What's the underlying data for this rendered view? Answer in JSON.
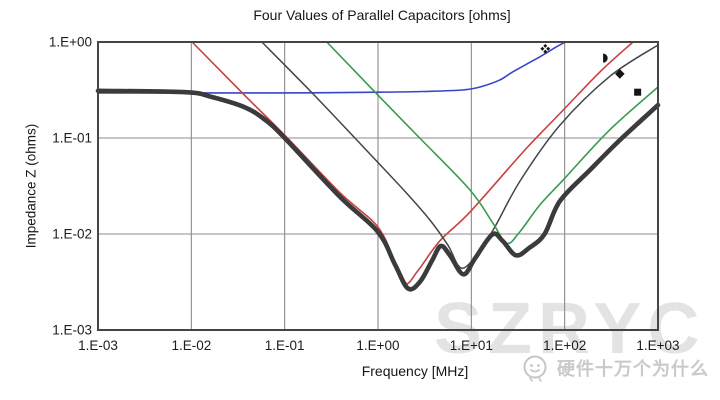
{
  "page": {
    "background": "#ffffff"
  },
  "chart": {
    "title": "Four Values of Parallel Capacitors [ohms]",
    "x_axis_title": "Frequency [MHz]",
    "y_axis_title": "Impedance Z (ohms)"
  },
  "watermark": {
    "text": "SZRYC",
    "color": "#e3e3e3"
  },
  "brand": {
    "name": "硬件十万个为什么",
    "logo": "cartoon-face-icon",
    "color": "#c9c9c9"
  },
  "chart_data": {
    "type": "line",
    "title": "Four Values of Parallel Capacitors [ohms]",
    "xlabel": "Frequency [MHz]",
    "ylabel": "Impedance Z (ohms)",
    "x_scale": "log",
    "y_scale": "log",
    "xlim": [
      0.001,
      1000
    ],
    "ylim": [
      0.001,
      1
    ],
    "grid": true,
    "grid_color": "#8b8b8b",
    "border_color": "#454545",
    "x_ticks": [
      {
        "value": 0.001,
        "label": "1.E-03"
      },
      {
        "value": 0.01,
        "label": "1.E-02"
      },
      {
        "value": 0.1,
        "label": "1.E-01"
      },
      {
        "value": 1,
        "label": "1.E+00"
      },
      {
        "value": 10,
        "label": "1.E+01"
      },
      {
        "value": 100,
        "label": "1.E+02"
      },
      {
        "value": 1000,
        "label": "1.E+03"
      }
    ],
    "y_ticks": [
      {
        "value": 1,
        "label": "1.E+00"
      },
      {
        "value": 0.1,
        "label": "1.E-01"
      },
      {
        "value": 0.01,
        "label": "1.E-02"
      },
      {
        "value": 0.001,
        "label": "1.E-03"
      }
    ],
    "series": [
      {
        "name": "blue-capacitor",
        "color": "#3646c8",
        "width": 1.6,
        "points": [
          [
            0.001,
            0.295
          ],
          [
            0.01,
            0.295
          ],
          [
            0.05,
            0.295
          ],
          [
            0.2,
            0.296
          ],
          [
            1,
            0.3
          ],
          [
            3,
            0.305
          ],
          [
            8,
            0.316
          ],
          [
            12.4,
            0.34
          ],
          [
            20,
            0.4
          ],
          [
            28,
            0.49
          ],
          [
            54,
            0.7
          ],
          [
            80,
            0.88
          ],
          [
            102,
            1.0
          ]
        ]
      },
      {
        "name": "red-capacitor",
        "color": "#c84040",
        "width": 1.6,
        "points": [
          [
            0.0102,
            1.0
          ],
          [
            0.037,
            0.28
          ],
          [
            0.1,
            0.107
          ],
          [
            0.39,
            0.027
          ],
          [
            1.0,
            0.0118
          ],
          [
            1.52,
            0.005
          ],
          [
            1.95,
            0.003
          ],
          [
            2.7,
            0.0042
          ],
          [
            4.6,
            0.0085
          ],
          [
            9.7,
            0.017
          ],
          [
            37.5,
            0.075
          ],
          [
            89,
            0.18
          ],
          [
            240,
            0.49
          ],
          [
            540,
            1.0
          ]
        ]
      },
      {
        "name": "black-capacitor",
        "color": "#454545",
        "width": 1.5,
        "points": [
          [
            0.057,
            1.0
          ],
          [
            0.2,
            0.29
          ],
          [
            0.565,
            0.1
          ],
          [
            2.0,
            0.027
          ],
          [
            3.6,
            0.014
          ],
          [
            5.6,
            0.0077
          ],
          [
            7.9,
            0.0044
          ],
          [
            12.4,
            0.0068
          ],
          [
            18,
            0.012
          ],
          [
            33.5,
            0.036
          ],
          [
            89,
            0.136
          ],
          [
            306,
            0.44
          ],
          [
            1000,
            0.93
          ]
        ]
      },
      {
        "name": "green-capacitor",
        "color": "#3a9a50",
        "width": 1.6,
        "points": [
          [
            0.283,
            1.0
          ],
          [
            0.93,
            0.3
          ],
          [
            2.8,
            0.1
          ],
          [
            9.6,
            0.029
          ],
          [
            17,
            0.013
          ],
          [
            24,
            0.008
          ],
          [
            33,
            0.0105
          ],
          [
            54,
            0.02
          ],
          [
            95,
            0.036
          ],
          [
            300,
            0.12
          ],
          [
            1000,
            0.34
          ]
        ]
      },
      {
        "name": "parallel-combination-thick",
        "color": "#3b3b3b",
        "width": 4.6,
        "points": [
          [
            0.001,
            0.31
          ],
          [
            0.0086,
            0.3
          ],
          [
            0.016,
            0.27
          ],
          [
            0.037,
            0.21
          ],
          [
            0.062,
            0.154
          ],
          [
            0.1,
            0.1
          ],
          [
            0.39,
            0.0245
          ],
          [
            1.0,
            0.0105
          ],
          [
            1.52,
            0.0048
          ],
          [
            2.1,
            0.0027
          ],
          [
            2.83,
            0.0032
          ],
          [
            3.8,
            0.0053
          ],
          [
            4.7,
            0.0075
          ],
          [
            5.9,
            0.006
          ],
          [
            8.2,
            0.0038
          ],
          [
            11,
            0.0056
          ],
          [
            16.8,
            0.0099
          ],
          [
            21.6,
            0.0085
          ],
          [
            30,
            0.006
          ],
          [
            42,
            0.0072
          ],
          [
            61,
            0.01
          ],
          [
            89,
            0.022
          ],
          [
            185,
            0.046
          ],
          [
            390,
            0.095
          ],
          [
            1000,
            0.22
          ]
        ]
      }
    ],
    "markers": [
      {
        "shape": "four-diamond",
        "x": 62,
        "y": 0.85
      },
      {
        "shape": "half-circle-right",
        "x": 258,
        "y": 0.68
      },
      {
        "shape": "diamond",
        "x": 390,
        "y": 0.465
      },
      {
        "shape": "square",
        "x": 605,
        "y": 0.3
      }
    ],
    "marker_color": "#151515",
    "legend_position": "none"
  }
}
